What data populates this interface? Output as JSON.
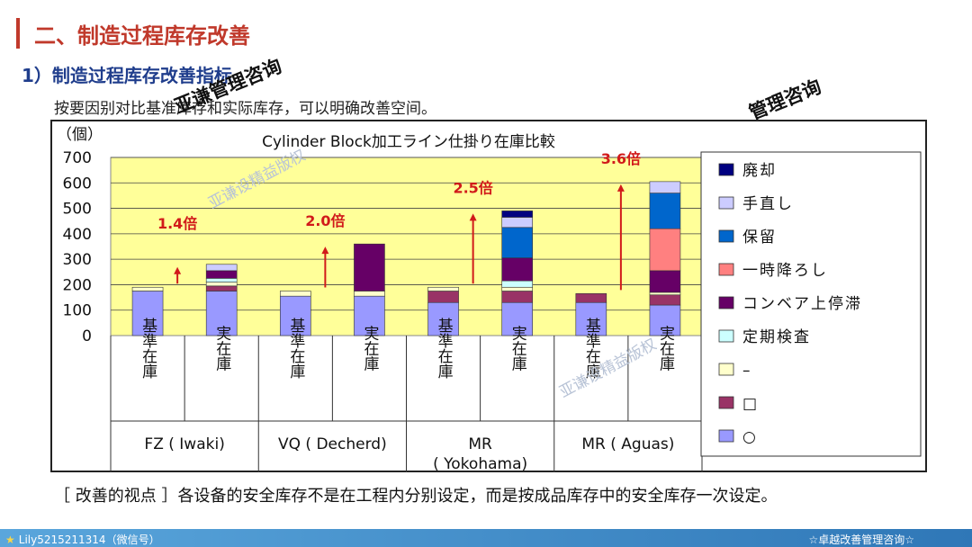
{
  "slide": {
    "title": "二、制造过程库存改善",
    "subtitle": "1）制造过程库存改善指标",
    "intro": "按要因别对比基准库存和实际库存，可以明确改善空间。",
    "watermarks": [
      "亚谦管理咨询",
      "管理咨询"
    ],
    "faint_watermarks": [
      "亚谦设精益版权",
      "亚谦设精益版权"
    ],
    "bottom_note": "［ 改善的视点 ］各设备的安全库存不是在工程内分别设定，而是按成品库存中的安全库存一次设定。",
    "footer_left": "Lily5215211314（微信号）",
    "footer_right": "☆卓越改善管理咨询☆"
  },
  "chart_data": {
    "type": "bar",
    "stacked": true,
    "title": "Cylinder Block加工ライン仕掛り在庫比較",
    "ylabel": "（個）",
    "ylim": [
      0,
      700
    ],
    "yticks": [
      0,
      100,
      200,
      300,
      400,
      500,
      600,
      700
    ],
    "grid": true,
    "plot_background": "#ffff99",
    "legend_position": "right",
    "categories": [
      "基準在庫",
      "実在庫",
      "基準在庫",
      "実在庫",
      "基準在庫",
      "実在庫",
      "基準在庫",
      "実在庫"
    ],
    "groups": [
      "FZ ( Iwaki)",
      "VQ ( Decherd)",
      "MR\n( Yokohama)",
      "MR ( Aguas)"
    ],
    "series": [
      {
        "name": "○",
        "color": "#9999ff",
        "values": [
          175,
          175,
          155,
          155,
          130,
          130,
          130,
          120
        ]
      },
      {
        "name": "□",
        "color": "#993366",
        "values": [
          0,
          20,
          0,
          0,
          45,
          45,
          35,
          40
        ]
      },
      {
        "name": "–",
        "color": "#ffffcc",
        "values": [
          15,
          15,
          20,
          20,
          15,
          15,
          0,
          10
        ]
      },
      {
        "name": "定期検査",
        "color": "#ccffff",
        "values": [
          0,
          15,
          0,
          0,
          0,
          25,
          0,
          0
        ]
      },
      {
        "name": "コンベア上停滞",
        "color": "#660066",
        "values": [
          0,
          30,
          0,
          185,
          0,
          90,
          0,
          85
        ]
      },
      {
        "name": "一時降ろし",
        "color": "#ff8080",
        "values": [
          0,
          0,
          0,
          0,
          0,
          0,
          0,
          165
        ]
      },
      {
        "name": "保留",
        "color": "#0066cc",
        "values": [
          0,
          0,
          0,
          0,
          0,
          120,
          0,
          140
        ]
      },
      {
        "name": "手直し",
        "color": "#ccccff",
        "values": [
          0,
          25,
          0,
          0,
          0,
          40,
          0,
          45
        ]
      },
      {
        "name": "廃却",
        "color": "#000080",
        "values": [
          0,
          0,
          0,
          0,
          0,
          25,
          0,
          0
        ]
      }
    ],
    "annotations": [
      "1.4倍",
      "2.0倍",
      "2.5倍",
      "3.6倍"
    ]
  },
  "colors": {
    "title": "#c0392b",
    "subtitle": "#1f3d8c",
    "annotation": "#d11a1a"
  }
}
